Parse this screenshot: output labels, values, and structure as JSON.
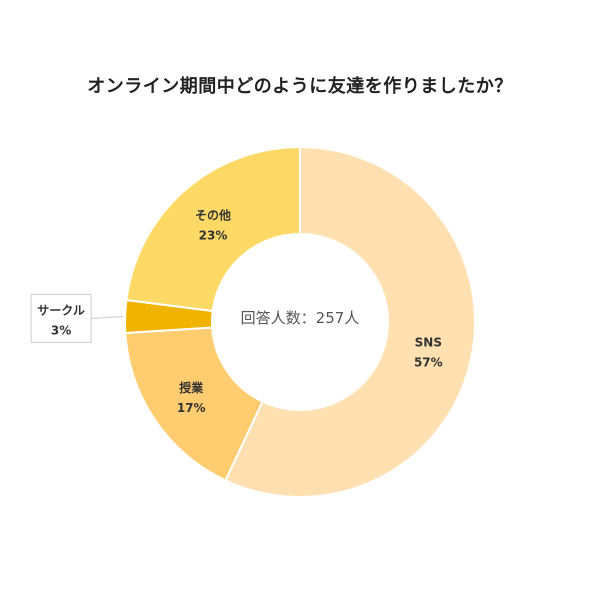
{
  "chart_data": {
    "type": "pie",
    "title": "オンライン期間中どのように友達を作りましたか？",
    "center_label": "回答人数：257人",
    "categories": [
      "SNS",
      "授業",
      "サークル",
      "その他"
    ],
    "values": [
      57,
      17,
      3,
      23
    ],
    "value_labels": [
      "57%",
      "17%",
      "3%",
      "23%"
    ],
    "colors": [
      "#ffe0b0",
      "#ffcc70",
      "#f0b400",
      "#ffd966"
    ],
    "donut": true,
    "legend": "none"
  }
}
